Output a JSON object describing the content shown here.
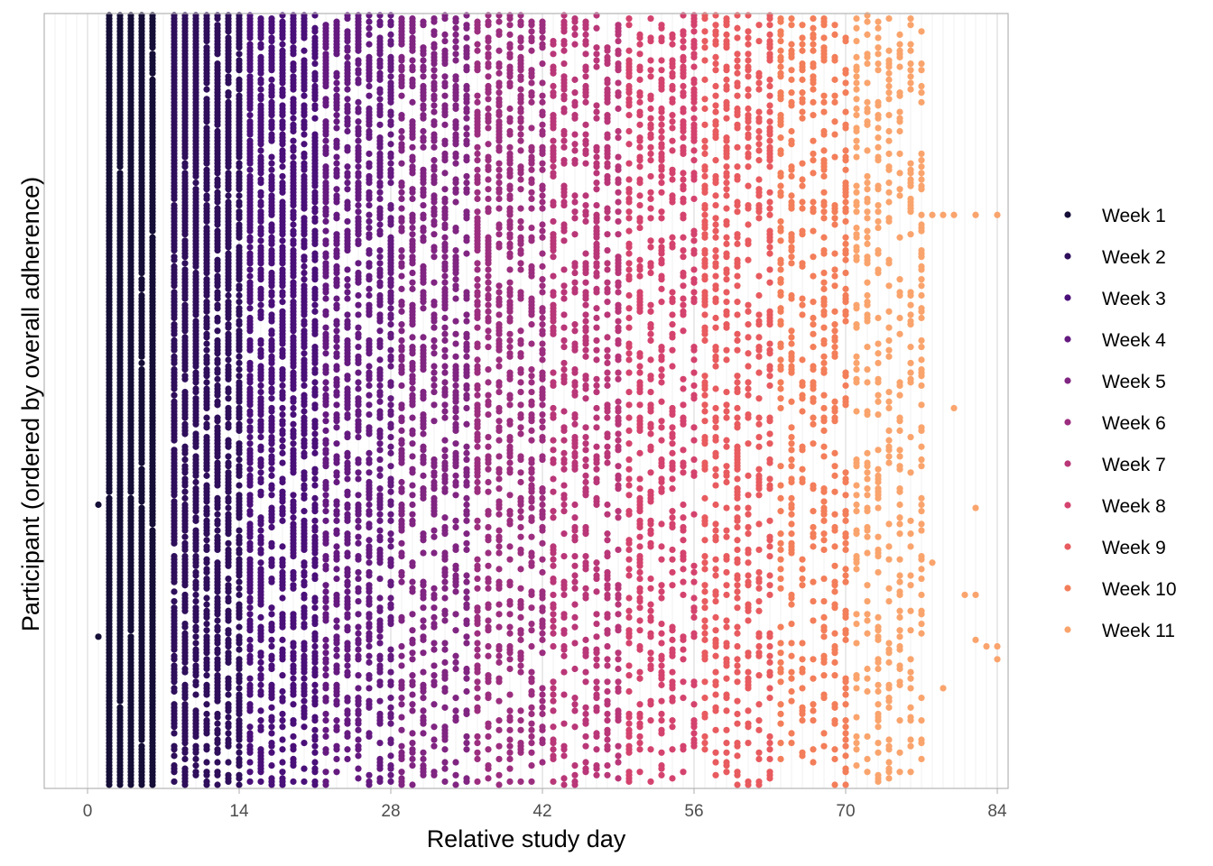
{
  "chart_data": {
    "type": "scatter",
    "title": "",
    "xlabel": "Relative study day",
    "ylabel": "Participant (ordered by overall adherence)",
    "xlim": [
      -4,
      85
    ],
    "x_ticks": [
      0,
      14,
      28,
      42,
      56,
      70,
      84
    ],
    "y_axis": "participant rank (no tick labels)",
    "grid": "vertical gridlines at every study day",
    "legend_position": "right",
    "participant_count": 240,
    "series": [
      {
        "name": "Week 1",
        "color": "#150e37",
        "days": [
          1,
          2,
          3,
          4,
          5,
          6,
          7
        ],
        "adherence_start": 0.98,
        "adherence_end": 0.94,
        "points": [
          [
            1,
            152
          ],
          [
            1,
            193
          ]
        ]
      },
      {
        "name": "Week 2",
        "color": "#2f0f5b",
        "days": [
          8,
          9,
          10,
          11,
          12,
          13,
          14
        ],
        "adherence_start": 0.92,
        "adherence_end": 0.78,
        "points": []
      },
      {
        "name": "Week 3",
        "color": "#4a1079",
        "days": [
          15,
          16,
          17,
          18,
          19,
          20,
          21
        ],
        "adherence_start": 0.75,
        "adherence_end": 0.62,
        "points": []
      },
      {
        "name": "Week 4",
        "color": "#651a80",
        "days": [
          22,
          23,
          24,
          25,
          26,
          27,
          28
        ],
        "adherence_start": 0.6,
        "adherence_end": 0.5,
        "points": []
      },
      {
        "name": "Week 5",
        "color": "#802582",
        "days": [
          29,
          30,
          31,
          32,
          33,
          34,
          35
        ],
        "adherence_start": 0.5,
        "adherence_end": 0.43,
        "points": []
      },
      {
        "name": "Week 6",
        "color": "#9c2e7f",
        "days": [
          36,
          37,
          38,
          39,
          40,
          41,
          42
        ],
        "adherence_start": 0.44,
        "adherence_end": 0.4,
        "points": []
      },
      {
        "name": "Week 7",
        "color": "#b93778",
        "days": [
          43,
          44,
          45,
          46,
          47,
          48,
          49
        ],
        "adherence_start": 0.4,
        "adherence_end": 0.36,
        "points": []
      },
      {
        "name": "Week 8",
        "color": "#d4436e",
        "days": [
          50,
          51,
          52,
          53,
          54,
          55,
          56
        ],
        "adherence_start": 0.37,
        "adherence_end": 0.33,
        "points": []
      },
      {
        "name": "Week 9",
        "color": "#e85b5f",
        "days": [
          57,
          58,
          59,
          60,
          61,
          62,
          63
        ],
        "adherence_start": 0.34,
        "adherence_end": 0.3,
        "points": []
      },
      {
        "name": "Week 10",
        "color": "#f37e5a",
        "days": [
          64,
          65,
          66,
          67,
          68,
          69,
          70
        ],
        "adherence_start": 0.31,
        "adherence_end": 0.28,
        "points": []
      },
      {
        "name": "Week 11",
        "color": "#faa46d",
        "days": [
          71,
          72,
          73,
          74,
          75,
          76,
          77
        ],
        "adherence_start": 0.28,
        "adherence_end": 0.25,
        "points": [
          [
            78,
            62
          ],
          [
            79,
            62
          ],
          [
            80,
            62
          ],
          [
            82,
            62
          ],
          [
            84,
            62
          ],
          [
            80,
            122
          ],
          [
            82,
            153
          ],
          [
            82,
            180
          ],
          [
            82,
            194
          ],
          [
            83,
            196
          ],
          [
            84,
            196
          ],
          [
            79,
            209
          ],
          [
            84,
            200
          ],
          [
            81,
            180
          ],
          [
            78,
            170
          ]
        ]
      }
    ]
  }
}
